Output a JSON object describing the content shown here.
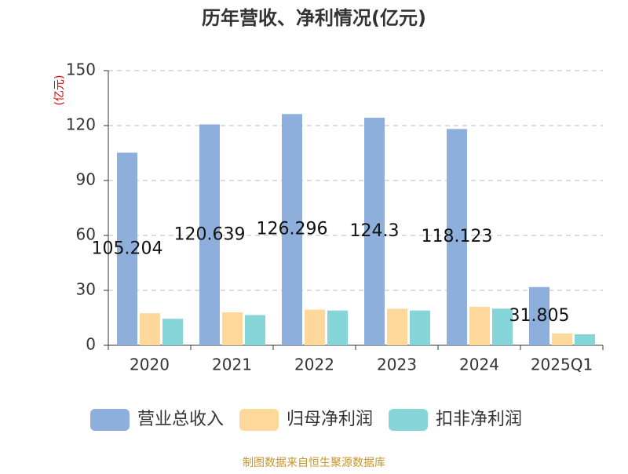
{
  "chart_data": {
    "type": "bar",
    "title": "历年营收、净利情况(亿元)",
    "y_label": "(亿元)",
    "categories": [
      "2020",
      "2021",
      "2022",
      "2023",
      "2024",
      "2025Q1"
    ],
    "series": [
      {
        "name": "营业总收入",
        "color": "#8eaedb",
        "values": [
          105.204,
          120.639,
          126.296,
          124.3,
          118.123,
          31.805
        ]
      },
      {
        "name": "归母净利润",
        "color": "#fdd89a",
        "values": [
          17.5,
          18,
          19.5,
          20,
          21,
          6.5
        ]
      },
      {
        "name": "扣非净利润",
        "color": "#86d5d8",
        "values": [
          14.5,
          16.5,
          19,
          19,
          20,
          6
        ]
      }
    ],
    "labeled_series": 0,
    "ylim": [
      0,
      150
    ],
    "yticks": [
      0,
      30,
      60,
      90,
      120,
      150
    ],
    "grid": true,
    "legend": "bottom",
    "source": "制图数据来自恒生聚源数据库"
  }
}
